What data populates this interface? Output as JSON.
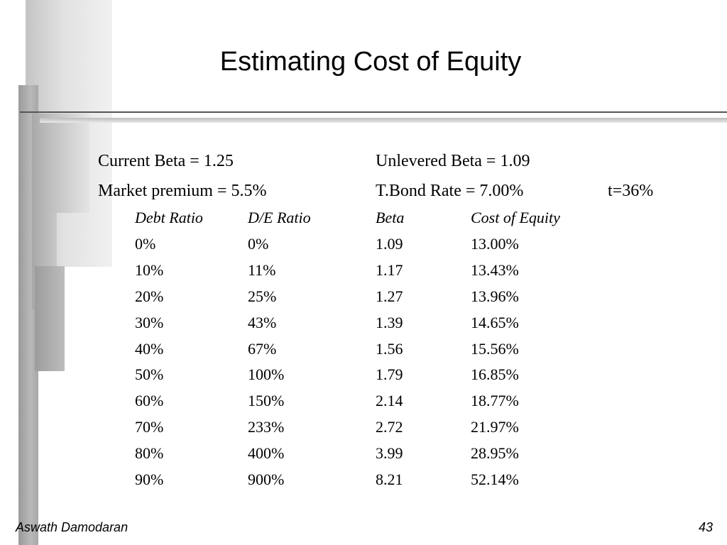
{
  "slide": {
    "title": "Estimating Cost of Equity",
    "params": {
      "current_beta": "Current Beta = 1.25",
      "unlevered_beta": "Unlevered Beta = 1.09",
      "market_premium": "Market premium = 5.5%",
      "tbond_rate": "T.Bond Rate = 7.00%",
      "tax_rate": "t=36%"
    },
    "table": {
      "headers": [
        "Debt Ratio",
        "D/E Ratio",
        "Beta",
        "Cost of Equity"
      ],
      "rows": [
        [
          "0%",
          "0%",
          "1.09",
          "13.00%"
        ],
        [
          "10%",
          "11%",
          "1.17",
          "13.43%"
        ],
        [
          "20%",
          "25%",
          "1.27",
          "13.96%"
        ],
        [
          "30%",
          "43%",
          "1.39",
          "14.65%"
        ],
        [
          "40%",
          "67%",
          "1.56",
          "15.56%"
        ],
        [
          "50%",
          "100%",
          "1.79",
          "16.85%"
        ],
        [
          "60%",
          "150%",
          "2.14",
          "18.77%"
        ],
        [
          "70%",
          "233%",
          "2.72",
          "21.97%"
        ],
        [
          "80%",
          "400%",
          "3.99",
          "28.95%"
        ],
        [
          "90%",
          "900%",
          "8.21",
          "52.14%"
        ]
      ]
    },
    "footer": {
      "author": "Aswath Damodaran",
      "page": "43"
    }
  }
}
